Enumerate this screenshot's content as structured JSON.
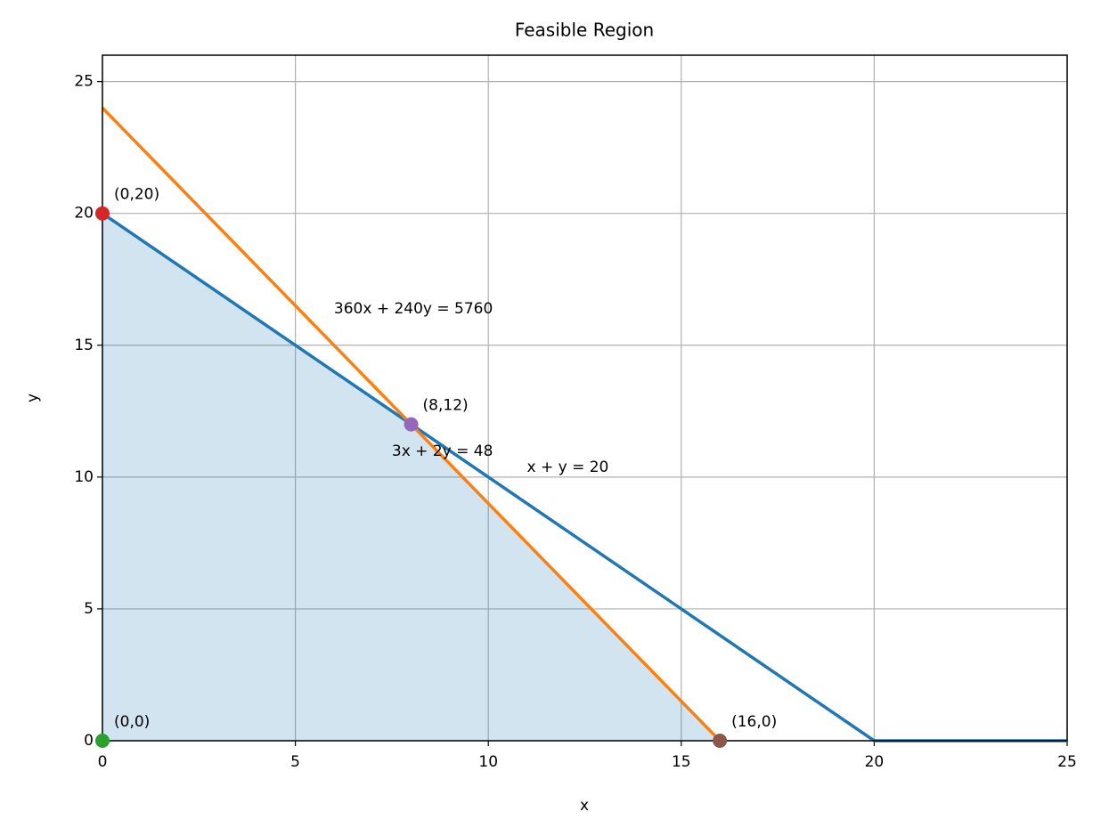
{
  "chart_data": {
    "type": "line",
    "title": "Feasible Region",
    "xlabel": "x",
    "ylabel": "y",
    "xlim": [
      0,
      25
    ],
    "ylim": [
      0,
      26
    ],
    "xticks": [
      0,
      5,
      10,
      15,
      20,
      25
    ],
    "yticks": [
      0,
      5,
      10,
      15,
      20,
      25
    ],
    "grid": true,
    "region": {
      "color": "#1f77b4",
      "x": [
        0,
        0,
        8,
        16
      ],
      "values": [
        0,
        20,
        12,
        0
      ]
    },
    "series": [
      {
        "color": "#1f77b4",
        "x": [
          0,
          20,
          25
        ],
        "values": [
          20,
          0,
          0
        ]
      },
      {
        "color": "#ff7f0e",
        "x": [
          0,
          16
        ],
        "values": [
          24,
          0
        ]
      }
    ],
    "points": [
      {
        "label": "(0,0)",
        "x": 0,
        "y": 0,
        "color": "#2ca02c"
      },
      {
        "label": "(0,20)",
        "x": 0,
        "y": 20,
        "color": "#d62728"
      },
      {
        "label": "(8,12)",
        "x": 8,
        "y": 12,
        "color": "#9467bd"
      },
      {
        "label": "(16,0)",
        "x": 16,
        "y": 0,
        "color": "#8c564b"
      }
    ],
    "annotations": [
      {
        "text": "360x + 240y = 5760",
        "x": 6,
        "y": 16.2
      },
      {
        "text": "3x + 2y = 48",
        "x": 7.5,
        "y": 10.8
      },
      {
        "text": "x + y = 20",
        "x": 11,
        "y": 10.2
      }
    ]
  }
}
